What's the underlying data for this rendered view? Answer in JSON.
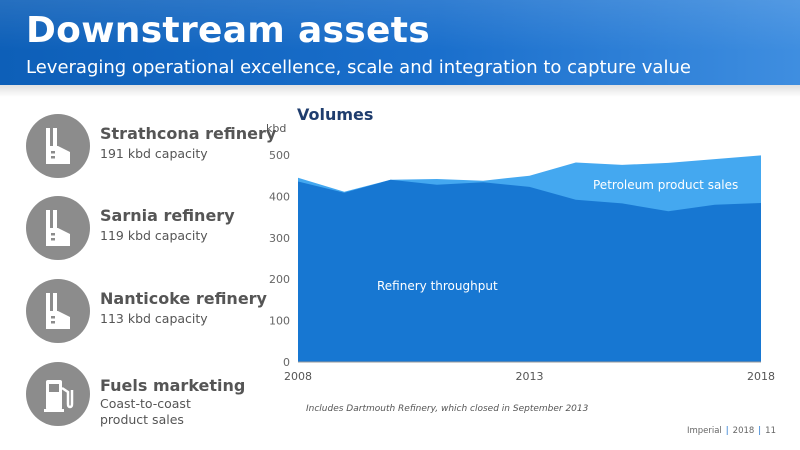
{
  "header": {
    "title": "Downstream assets",
    "subtitle": "Leveraging operational excellence, scale and integration to capture value"
  },
  "assets": [
    {
      "name": "Strathcona refinery",
      "desc": "191 kbd capacity",
      "icon": "refinery-icon"
    },
    {
      "name": "Sarnia refinery",
      "desc": "119 kbd capacity",
      "icon": "refinery-icon"
    },
    {
      "name": "Nanticoke refinery",
      "desc": "113 kbd capacity",
      "icon": "refinery-icon"
    },
    {
      "name": "Fuels marketing",
      "desc_lines": [
        "Coast-to-coast",
        "product sales"
      ],
      "icon": "fuel-pump-icon"
    }
  ],
  "chart_data": {
    "type": "area",
    "title": "Volumes",
    "ylabel": "kbd",
    "xlabel": "",
    "x": [
      2008,
      2009,
      2010,
      2011,
      2012,
      2013,
      2014,
      2015,
      2016,
      2017,
      2018
    ],
    "x_ticks": [
      "2008",
      "2013",
      "2018"
    ],
    "y_ticks": [
      "0",
      "100",
      "200",
      "300",
      "400",
      "500"
    ],
    "ylim": [
      0,
      500
    ],
    "series": [
      {
        "name": "Refinery throughput",
        "color": "#1777d2",
        "values": [
          436,
          409,
          440,
          428,
          434,
          423,
          392,
          383,
          364,
          380,
          384
        ]
      },
      {
        "name": "Petroleum product sales",
        "color": "#44a8f0",
        "values": [
          445,
          411,
          440,
          442,
          438,
          450,
          482,
          476,
          481,
          490,
          499
        ]
      }
    ],
    "grid": false,
    "legend": "inline labels"
  },
  "footnote": "Includes Dartmouth Refinery, which closed in September 2013",
  "footer": {
    "company": "Imperial",
    "year": "2018",
    "page": "11"
  },
  "colors": {
    "header": "#1a6fcc",
    "icon_circle": "#8c8c8c",
    "title_dark": "#1f3d6e"
  }
}
